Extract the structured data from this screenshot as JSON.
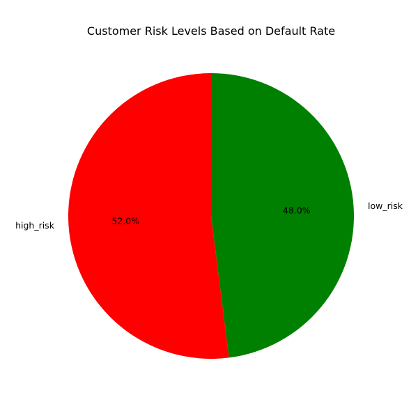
{
  "chart_data": {
    "type": "pie",
    "title": "Customer Risk Levels Based on Default Rate",
    "labels": [
      "low_risk",
      "high_risk"
    ],
    "values": [
      48.0,
      52.0
    ],
    "percent_labels": [
      "48.0%",
      "52.0%"
    ],
    "colors": [
      "#008000",
      "#ff0000"
    ],
    "start_angle_deg": 90,
    "direction": "clockwise",
    "legend": "none"
  }
}
